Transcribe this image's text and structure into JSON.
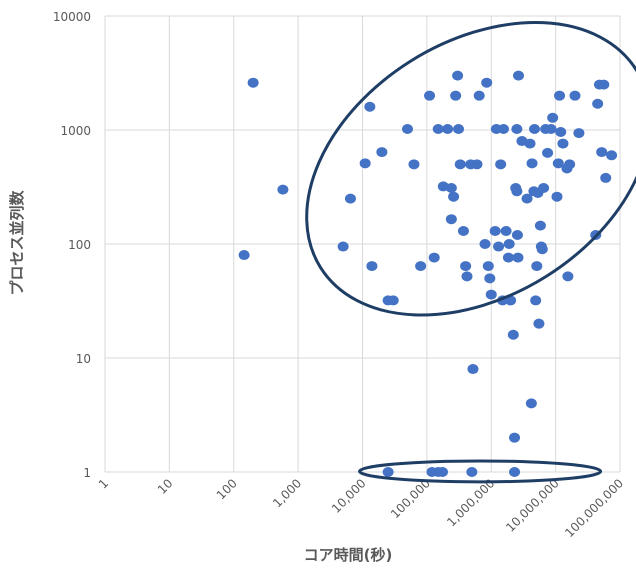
{
  "chart_data": {
    "type": "scatter",
    "title": "",
    "xlabel": "コア時間(秒)",
    "ylabel": "プロセス並列数",
    "x_scale": "log",
    "y_scale": "log",
    "xlim": [
      1,
      100000000
    ],
    "ylim": [
      1,
      10000
    ],
    "x_ticks": [
      1,
      10,
      100,
      1000,
      10000,
      100000,
      1000000,
      10000000,
      100000000
    ],
    "x_tick_labels": [
      "1",
      "10",
      "100",
      "1,000",
      "10,000",
      "100,000",
      "1,000,000",
      "10,000,000",
      "100,000,000"
    ],
    "y_ticks": [
      1,
      10,
      100,
      1000,
      10000
    ],
    "y_tick_labels": [
      "1",
      "10",
      "100",
      "1000",
      "10000"
    ],
    "grid": {
      "x": true,
      "y": true
    },
    "legend": "none",
    "colors": {
      "point": "#4472c4",
      "ellipse": "#1f3e66",
      "grid": "#d9d9d9",
      "text": "#595959"
    },
    "points": [
      {
        "x": 145,
        "y": 80
      },
      {
        "x": 200,
        "y": 2600
      },
      {
        "x": 580,
        "y": 300
      },
      {
        "x": 5000,
        "y": 95
      },
      {
        "x": 6500,
        "y": 250
      },
      {
        "x": 11000,
        "y": 510
      },
      {
        "x": 13000,
        "y": 1600
      },
      {
        "x": 14000,
        "y": 64
      },
      {
        "x": 20000,
        "y": 640
      },
      {
        "x": 25000,
        "y": 32
      },
      {
        "x": 30000,
        "y": 32
      },
      {
        "x": 50000,
        "y": 1020
      },
      {
        "x": 63000,
        "y": 500
      },
      {
        "x": 80000,
        "y": 64
      },
      {
        "x": 110000,
        "y": 2000
      },
      {
        "x": 130000,
        "y": 76
      },
      {
        "x": 150000,
        "y": 1020
      },
      {
        "x": 180000,
        "y": 320
      },
      {
        "x": 210000,
        "y": 1020
      },
      {
        "x": 240000,
        "y": 310
      },
      {
        "x": 240000,
        "y": 165
      },
      {
        "x": 260000,
        "y": 260
      },
      {
        "x": 280000,
        "y": 2000
      },
      {
        "x": 300000,
        "y": 3000
      },
      {
        "x": 310000,
        "y": 1020
      },
      {
        "x": 330000,
        "y": 500
      },
      {
        "x": 370000,
        "y": 130
      },
      {
        "x": 400000,
        "y": 64
      },
      {
        "x": 420000,
        "y": 52
      },
      {
        "x": 480000,
        "y": 500
      },
      {
        "x": 520000,
        "y": 8
      },
      {
        "x": 600000,
        "y": 500
      },
      {
        "x": 650000,
        "y": 2000
      },
      {
        "x": 800000,
        "y": 100
      },
      {
        "x": 850000,
        "y": 2600
      },
      {
        "x": 900000,
        "y": 64
      },
      {
        "x": 950000,
        "y": 50
      },
      {
        "x": 1000000,
        "y": 36
      },
      {
        "x": 1150000,
        "y": 130
      },
      {
        "x": 1200000,
        "y": 1020
      },
      {
        "x": 1300000,
        "y": 95
      },
      {
        "x": 1400000,
        "y": 500
      },
      {
        "x": 1500000,
        "y": 32
      },
      {
        "x": 1550000,
        "y": 1020
      },
      {
        "x": 1700000,
        "y": 130
      },
      {
        "x": 1850000,
        "y": 76
      },
      {
        "x": 1900000,
        "y": 100
      },
      {
        "x": 2000000,
        "y": 32
      },
      {
        "x": 2200000,
        "y": 16
      },
      {
        "x": 2300000,
        "y": 2
      },
      {
        "x": 2400000,
        "y": 310
      },
      {
        "x": 2500000,
        "y": 1020
      },
      {
        "x": 2500000,
        "y": 290
      },
      {
        "x": 2550000,
        "y": 120
      },
      {
        "x": 2600000,
        "y": 76
      },
      {
        "x": 2650000,
        "y": 3000
      },
      {
        "x": 3000000,
        "y": 800
      },
      {
        "x": 3600000,
        "y": 250
      },
      {
        "x": 4000000,
        "y": 760
      },
      {
        "x": 4200000,
        "y": 4
      },
      {
        "x": 4300000,
        "y": 510
      },
      {
        "x": 4600000,
        "y": 290
      },
      {
        "x": 4700000,
        "y": 1020
      },
      {
        "x": 4900000,
        "y": 32
      },
      {
        "x": 5100000,
        "y": 64
      },
      {
        "x": 5300000,
        "y": 280
      },
      {
        "x": 5500000,
        "y": 20
      },
      {
        "x": 5800000,
        "y": 145
      },
      {
        "x": 6000000,
        "y": 95
      },
      {
        "x": 6200000,
        "y": 90
      },
      {
        "x": 6500000,
        "y": 310
      },
      {
        "x": 7000000,
        "y": 1020
      },
      {
        "x": 7500000,
        "y": 630
      },
      {
        "x": 8500000,
        "y": 1020
      },
      {
        "x": 9000000,
        "y": 1280
      },
      {
        "x": 10500000,
        "y": 260
      },
      {
        "x": 11000000,
        "y": 510
      },
      {
        "x": 11500000,
        "y": 2000
      },
      {
        "x": 12000000,
        "y": 960
      },
      {
        "x": 13000000,
        "y": 760
      },
      {
        "x": 15000000,
        "y": 460
      },
      {
        "x": 15500000,
        "y": 52
      },
      {
        "x": 16500000,
        "y": 500
      },
      {
        "x": 20000000,
        "y": 2000
      },
      {
        "x": 23000000,
        "y": 940
      },
      {
        "x": 42000000,
        "y": 120
      },
      {
        "x": 45000000,
        "y": 1700
      },
      {
        "x": 48000000,
        "y": 2500
      },
      {
        "x": 52000000,
        "y": 640
      },
      {
        "x": 56000000,
        "y": 2500
      },
      {
        "x": 60000000,
        "y": 380
      },
      {
        "x": 74000000,
        "y": 600
      },
      {
        "x": 25000,
        "y": 1
      },
      {
        "x": 120000,
        "y": 1
      },
      {
        "x": 150000,
        "y": 1
      },
      {
        "x": 175000,
        "y": 1
      },
      {
        "x": 500000,
        "y": 1
      },
      {
        "x": 2300000,
        "y": 1
      }
    ],
    "annotations": [
      {
        "shape": "ellipse",
        "x_range": [
          5000,
          80000000
        ],
        "y_range": [
          22,
          9500
        ],
        "rotation_deg": 32
      },
      {
        "shape": "ellipse",
        "x_range": [
          9000,
          50000000
        ],
        "y_range": [
          0.82,
          1.25
        ],
        "rotation_deg": 0
      }
    ]
  }
}
